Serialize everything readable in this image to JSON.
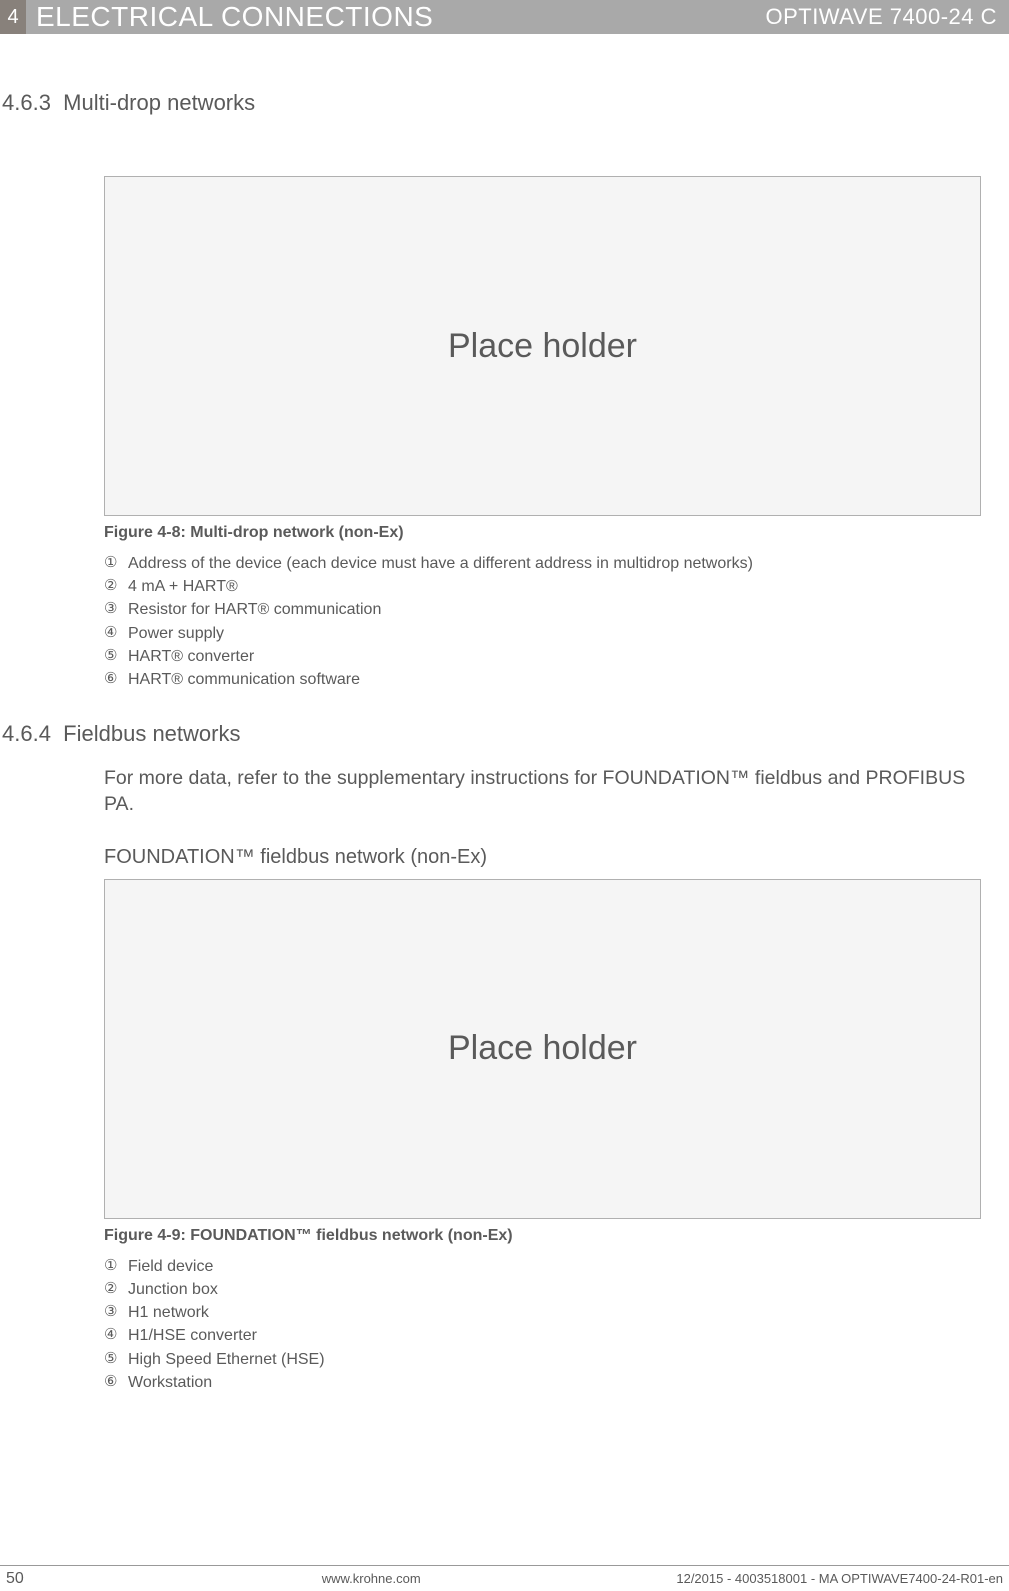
{
  "header": {
    "chapter_num": "4",
    "chapter_title": "ELECTRICAL CONNECTIONS",
    "product": "OPTIWAVE 7400-24 C"
  },
  "section_463": {
    "number": "4.6.3",
    "title": "Multi-drop networks"
  },
  "fig48": {
    "placeholder": "Place holder",
    "caption": "Figure 4-8: Multi-drop network (non-Ex)",
    "items": [
      "Address of the device (each device must have a different address in multidrop networks)",
      "4 mA + HART®",
      "Resistor for HART® communication",
      "Power supply",
      "HART® converter",
      "HART® communication software"
    ]
  },
  "section_464": {
    "number": "4.6.4",
    "title": "Fieldbus networks",
    "para": "For more data, refer to the supplementary instructions for FOUNDATION™ fieldbus and PROFIBUS PA.",
    "subheading": "FOUNDATION™ fieldbus network (non-Ex)"
  },
  "fig49": {
    "placeholder": "Place holder",
    "caption": "Figure 4-9: FOUNDATION™ fieldbus network (non-Ex)",
    "items": [
      "Field device",
      "Junction box",
      "H1 network",
      "H1/HSE converter",
      "High Speed Ethernet (HSE)",
      "Workstation"
    ]
  },
  "circled": [
    "①",
    "②",
    "③",
    "④",
    "⑤",
    "⑥"
  ],
  "footer": {
    "page": "50",
    "url": "www.krohne.com",
    "doc": "12/2015 - 4003518001 - MA OPTIWAVE7400-24-R01-en"
  },
  "colors": {
    "header_bg": "#a9a9a9",
    "chapter_num_bg": "#88817b",
    "text": "#5a5a5a",
    "figure_bg": "#f5f5f5",
    "figure_border": "#b0b0b0"
  }
}
